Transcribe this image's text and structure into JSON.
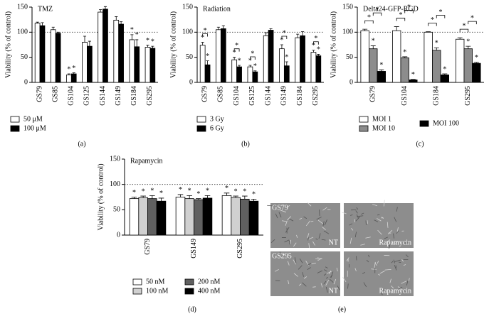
{
  "chart_data": [
    {
      "type": "bar",
      "title": "TMZ",
      "panel": "(a)",
      "y_label": "Viability (% of control)",
      "categories": [
        "GS79",
        "GS85",
        "GS104",
        "GS125",
        "GS144",
        "GS149",
        "GS184",
        "GS295"
      ],
      "ylim": [
        0,
        150
      ],
      "yticks": [
        0,
        50,
        100,
        150
      ],
      "reference_line": 100,
      "series": [
        {
          "name": "50 μM",
          "color": "#ffffff",
          "values": [
            118,
            105,
            15,
            80,
            140,
            124,
            85,
            70
          ],
          "errors": [
            2,
            5,
            2,
            12,
            5,
            7,
            10,
            4
          ],
          "significance": [
            null,
            null,
            "*",
            null,
            null,
            null,
            "*",
            "*"
          ]
        },
        {
          "name": "100 μM",
          "color": "#000000",
          "values": [
            113,
            98,
            17,
            72,
            146,
            116,
            71,
            68
          ],
          "errors": [
            6,
            2,
            2,
            10,
            5,
            5,
            14,
            4
          ],
          "significance": [
            null,
            null,
            "*",
            null,
            null,
            null,
            "*",
            "*"
          ]
        }
      ],
      "comparisons": []
    },
    {
      "type": "bar",
      "title": "Radiation",
      "panel": "(b)",
      "y_label": "Viability (% of control)",
      "categories": [
        "GS79",
        "GS85",
        "GS104",
        "GS125",
        "GS144",
        "GS149",
        "GS184",
        "GS295"
      ],
      "ylim": [
        0,
        150
      ],
      "yticks": [
        0,
        50,
        100,
        150
      ],
      "reference_line": 100,
      "series": [
        {
          "name": "3 Gy",
          "color": "#ffffff",
          "values": [
            74,
            105,
            45,
            31,
            93,
            67,
            89,
            60
          ],
          "errors": [
            6,
            5,
            5,
            3,
            6,
            8,
            7,
            4
          ],
          "significance": [
            "*",
            null,
            "*",
            "*",
            null,
            "*",
            null,
            "*"
          ]
        },
        {
          "name": "6 Gy",
          "color": "#000000",
          "values": [
            35,
            107,
            31,
            21,
            104,
            33,
            93,
            53
          ],
          "errors": [
            8,
            6,
            3,
            2,
            3,
            8,
            8,
            3
          ],
          "significance": [
            "*",
            null,
            "*",
            "*",
            null,
            "*",
            null,
            "*"
          ]
        }
      ],
      "comparisons": [
        {
          "category": "GS79",
          "label": "*"
        },
        {
          "category": "GS104",
          "label": "*"
        },
        {
          "category": "GS125",
          "label": "*"
        },
        {
          "category": "GS149",
          "label": "*"
        },
        {
          "category": "GS295",
          "label": "*"
        }
      ]
    },
    {
      "type": "bar",
      "title": "Delta24-GFP-RGD",
      "panel": "(c)",
      "y_label": "Viability (% of control)",
      "categories": [
        "GS79",
        "GS104",
        "GS184",
        "GS295"
      ],
      "ylim": [
        0,
        150
      ],
      "yticks": [
        0,
        50,
        100,
        150
      ],
      "reference_line": 100,
      "series": [
        {
          "name": "MOI 1",
          "color": "#ffffff",
          "values": [
            103,
            103,
            100,
            86
          ],
          "errors": [
            3,
            8,
            1,
            3
          ],
          "significance": [
            null,
            null,
            null,
            null
          ]
        },
        {
          "name": "MOI 10",
          "color": "#8c8c8c",
          "values": [
            67,
            49,
            64,
            67
          ],
          "errors": [
            6,
            2,
            5,
            5
          ],
          "significance": [
            "*",
            "*",
            "*",
            "*"
          ]
        },
        {
          "name": "MOI 100",
          "color": "#000000",
          "values": [
            22,
            5,
            15,
            38
          ],
          "errors": [
            3,
            1,
            2,
            2
          ],
          "significance": [
            "*",
            "*",
            "*",
            "*"
          ]
        }
      ],
      "comparisons": [
        {
          "category": "GS79",
          "label": "*"
        },
        {
          "category": "GS79",
          "label": "*"
        },
        {
          "category": "GS104",
          "label": "*"
        },
        {
          "category": "GS104",
          "label": "*"
        },
        {
          "category": "GS184",
          "label": "*"
        },
        {
          "category": "GS184",
          "label": "*"
        },
        {
          "category": "GS295",
          "label": "*"
        },
        {
          "category": "GS295",
          "label": "*"
        }
      ]
    },
    {
      "type": "bar",
      "title": "Rapamycin",
      "panel": "(d)",
      "y_label": "Viability (% of control)",
      "categories": [
        "GS79",
        "GS149",
        "GS295"
      ],
      "ylim": [
        0,
        150
      ],
      "yticks": [
        0,
        50,
        100,
        150
      ],
      "reference_line": 100,
      "series": [
        {
          "name": "50 nM",
          "color": "#ffffff",
          "values": [
            72,
            75,
            78
          ],
          "errors": [
            3,
            5,
            5
          ],
          "significance": [
            "*",
            "*",
            "*"
          ]
        },
        {
          "name": "100 nM",
          "color": "#d0d0d0",
          "values": [
            74,
            72,
            74
          ],
          "errors": [
            3,
            6,
            3
          ],
          "significance": [
            "*",
            "*",
            "*"
          ]
        },
        {
          "name": "200 nM",
          "color": "#606060",
          "values": [
            72,
            70,
            71
          ],
          "errors": [
            6,
            2,
            6
          ],
          "significance": [
            "*",
            "*",
            "*"
          ]
        },
        {
          "name": "400 nM",
          "color": "#000000",
          "values": [
            67,
            73,
            67
          ],
          "errors": [
            6,
            5,
            4
          ],
          "significance": [
            "*",
            "*",
            "*"
          ]
        }
      ],
      "comparisons": []
    }
  ],
  "images": {
    "panel": "(e)",
    "rows": [
      {
        "label": "GS79",
        "tiles": [
          "NT",
          "Rapamycin"
        ]
      },
      {
        "label": "GS295",
        "tiles": [
          "NT",
          "Rapamycin"
        ]
      }
    ]
  }
}
